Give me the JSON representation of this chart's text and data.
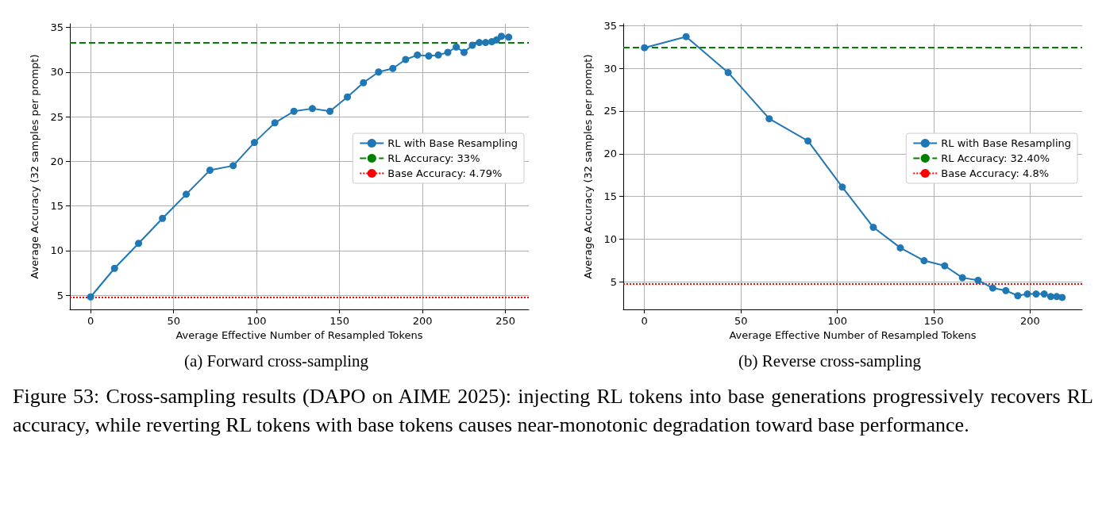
{
  "chart_data": [
    {
      "type": "line",
      "title": "(a) Forward cross-sampling",
      "xlabel": "Average Effective Number of Resampled Tokens",
      "ylabel": "Average Accuracy (32 samples per prompt)",
      "x": [
        0,
        14.4,
        28.9,
        43.3,
        57.6,
        71.9,
        85.9,
        98.7,
        111,
        122.5,
        133.6,
        144.2,
        154.7,
        164.4,
        173.5,
        182.1,
        189.8,
        196.9,
        203.7,
        209.5,
        215.2,
        220.3,
        225,
        230,
        234.2,
        238,
        241.7,
        244.6,
        247.5,
        251.9
      ],
      "series": [
        {
          "name": "RL with Base Resampling",
          "color": "#1f77b4",
          "values": [
            4.8,
            8.0,
            10.8,
            13.6,
            16.3,
            19.0,
            19.5,
            22.1,
            24.3,
            25.6,
            25.9,
            25.6,
            27.2,
            28.8,
            30.0,
            30.4,
            31.4,
            31.9,
            31.8,
            31.9,
            32.2,
            32.8,
            32.2,
            33.0,
            33.3,
            33.3,
            33.4,
            33.6,
            34.0,
            33.9
          ]
        }
      ],
      "ref_lines": [
        {
          "axis": "y",
          "value": 33.3,
          "label": "RL Accuracy: 33%",
          "color": "#008000",
          "line_style": "dashed"
        },
        {
          "axis": "y",
          "value": 4.79,
          "label": "Base Accuracy: 4.79%",
          "color": "#ff0000",
          "line_style": "dotted"
        }
      ],
      "xlim": [
        -12.5,
        264
      ],
      "ylim": [
        3.4,
        35.4
      ],
      "xticks": [
        0,
        50,
        100,
        150,
        200,
        250
      ],
      "yticks": [
        5,
        10,
        15,
        20,
        25,
        30,
        35
      ],
      "grid": true,
      "legend": "center right",
      "marker": "circle",
      "line_style": "solid",
      "annotations": [
        "Figure 53: Cross-sampling results (DAPO on AIME 2025): injecting RL tokens into base generations progressively recovers RL accuracy, while reverting RL tokens with base tokens causes near-monotonic degradation toward base performance."
      ]
    },
    {
      "type": "line",
      "title": "(b) Reverse cross-sampling",
      "xlabel": "Average Effective Number of Resampled Tokens",
      "ylabel": "Average Accuracy (32 samples per prompt)",
      "x": [
        0,
        21.6,
        43.4,
        64.7,
        84.8,
        102.6,
        118.7,
        132.7,
        145,
        155.7,
        164.9,
        173,
        180.6,
        187.4,
        193.6,
        198.6,
        203.1,
        207.3,
        210.7,
        213.8,
        216.6
      ],
      "series": [
        {
          "name": "RL with Base Resampling",
          "color": "#1f77b4",
          "values": [
            32.4,
            33.7,
            29.5,
            24.1,
            21.5,
            16.1,
            11.4,
            9.0,
            7.5,
            6.9,
            5.5,
            5.2,
            4.3,
            4.0,
            3.4,
            3.6,
            3.6,
            3.6,
            3.3,
            3.3,
            3.2
          ]
        }
      ],
      "ref_lines": [
        {
          "axis": "y",
          "value": 32.4,
          "label": "RL Accuracy: 32.40%",
          "color": "#008000",
          "line_style": "dashed"
        },
        {
          "axis": "y",
          "value": 4.8,
          "label": "Base Accuracy: 4.8%",
          "color": "#ff0000",
          "line_style": "dotted"
        }
      ],
      "xlim": [
        -11,
        227
      ],
      "ylim": [
        1.8,
        35.2
      ],
      "xticks": [
        0,
        50,
        100,
        150,
        200
      ],
      "yticks": [
        5,
        10,
        15,
        20,
        25,
        30,
        35
      ],
      "grid": true,
      "legend": "center right",
      "marker": "circle",
      "line_style": "solid"
    }
  ]
}
